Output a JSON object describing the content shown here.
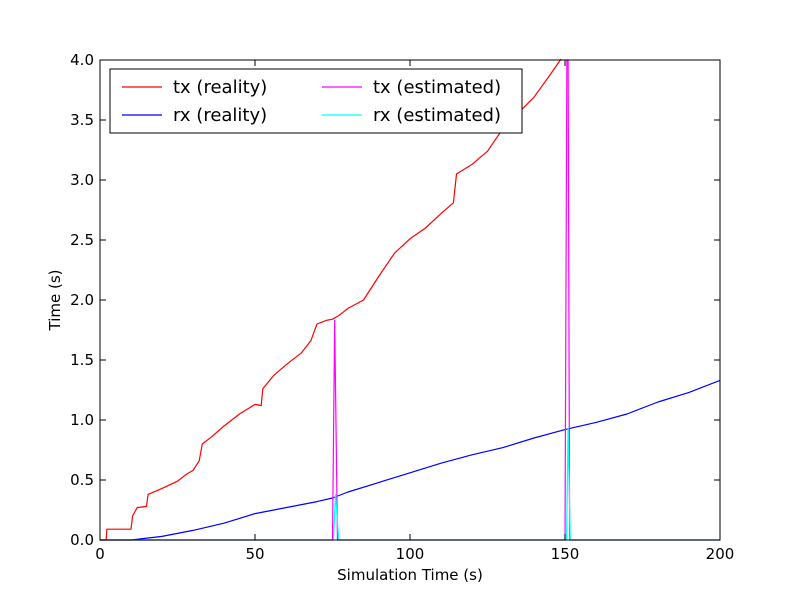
{
  "chart_data": {
    "type": "line",
    "title": "",
    "xlabel": "Simulation Time (s)",
    "ylabel": "Time (s)",
    "xlim": [
      0,
      200
    ],
    "ylim": [
      0,
      4.0
    ],
    "xticks": [
      0,
      50,
      100,
      150,
      200
    ],
    "xtick_labels": [
      "0",
      "50",
      "100",
      "150",
      "200"
    ],
    "yticks": [
      0.0,
      0.5,
      1.0,
      1.5,
      2.0,
      2.5,
      3.0,
      3.5,
      4.0
    ],
    "ytick_labels": [
      "0.0",
      "0.5",
      "1.0",
      "1.5",
      "2.0",
      "2.5",
      "3.0",
      "3.5",
      "4.0"
    ],
    "grid": false,
    "legend": {
      "placement": "top-left",
      "columns": 2
    },
    "series": [
      {
        "name": "tx (reality)",
        "color": "#ff0000",
        "x": [
          0,
          2,
          2.2,
          10,
          10.5,
          12,
          15,
          15.5,
          20,
          25,
          28,
          30,
          32,
          33,
          36,
          40,
          45,
          50,
          52,
          52.5,
          56,
          60,
          65,
          68,
          70,
          73,
          75,
          77,
          79,
          80,
          85,
          90,
          95,
          100,
          105,
          110,
          114,
          115,
          120,
          125,
          130,
          135,
          140,
          145,
          148.5,
          149.5
        ],
        "y": [
          0,
          0,
          0.09,
          0.09,
          0.2,
          0.27,
          0.28,
          0.38,
          0.43,
          0.49,
          0.55,
          0.58,
          0.66,
          0.8,
          0.86,
          0.95,
          1.05,
          1.13,
          1.12,
          1.26,
          1.37,
          1.46,
          1.56,
          1.66,
          1.8,
          1.83,
          1.84,
          1.87,
          1.91,
          1.93,
          2.0,
          2.2,
          2.39,
          2.51,
          2.6,
          2.72,
          2.81,
          3.05,
          3.13,
          3.24,
          3.43,
          3.56,
          3.69,
          3.87,
          4.0,
          4.05
        ]
      },
      {
        "name": "rx (reality)",
        "color": "#0000ff",
        "x": [
          0,
          10,
          20,
          30,
          40,
          50,
          60,
          70,
          75,
          80,
          90,
          100,
          110,
          120,
          130,
          140,
          150,
          160,
          170,
          180,
          190,
          200
        ],
        "y": [
          0,
          0.0,
          0.03,
          0.08,
          0.14,
          0.22,
          0.27,
          0.32,
          0.35,
          0.4,
          0.48,
          0.56,
          0.64,
          0.71,
          0.77,
          0.85,
          0.92,
          0.98,
          1.05,
          1.15,
          1.23,
          1.33
        ]
      },
      {
        "name": "tx (estimated)",
        "color": "#ff00ff",
        "x": [
          0,
          75,
          75.7,
          76.6,
          150,
          150.6,
          151.0,
          151.5,
          200
        ],
        "y": [
          0,
          0,
          1.83,
          0,
          0,
          4.0,
          4.0,
          0,
          0
        ]
      },
      {
        "name": "rx (estimated)",
        "color": "#00ffff",
        "x": [
          0,
          75.3,
          76.0,
          77.0,
          150.5,
          151.0,
          151.7,
          200
        ],
        "y": [
          0,
          0,
          0.38,
          0,
          0,
          0.93,
          0,
          0
        ]
      }
    ]
  }
}
